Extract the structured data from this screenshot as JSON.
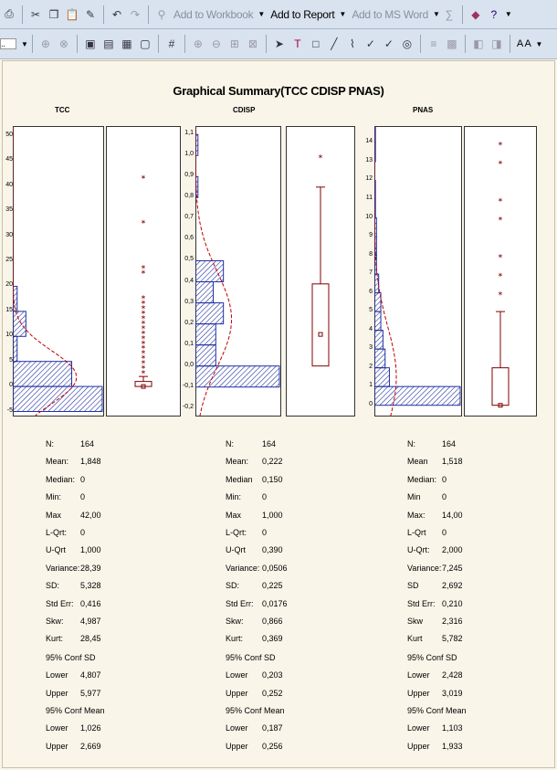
{
  "toolbar1": {
    "add_workbook": "Add to Workbook",
    "add_report": "Add to Report",
    "add_word": "Add to MS Word"
  },
  "toolbar2": {
    "zoom_box": "..",
    "font_label": "A A"
  },
  "title": "Graphical Summary(TCC CDISP PNAS)",
  "columns": [
    {
      "name": "TCC",
      "yticks": [
        "50",
        "45",
        "40",
        "35",
        "30",
        "25",
        "20",
        "15",
        "10",
        "5",
        "0",
        "-5"
      ],
      "stats": [
        [
          "N:",
          "164"
        ],
        [
          "Mean:",
          "1,848"
        ],
        [
          "Median:",
          "0"
        ],
        [
          "Min:",
          "0"
        ],
        [
          "Max",
          "42,00"
        ],
        [
          "L-Qrt:",
          "0"
        ],
        [
          "U-Qrt",
          "1,000"
        ],
        [
          "Variance:",
          "28,39"
        ],
        [
          "SD:",
          "5,328"
        ],
        [
          "Std Err:",
          "0,416"
        ],
        [
          "Skw:",
          "4,987"
        ],
        [
          "Kurt:",
          "28,45"
        ]
      ],
      "ci_sd": {
        "head": "95% Conf SD",
        "lower_label": "Lower",
        "lower": "4,807",
        "upper_label": "Upper",
        "upper": "5,977"
      },
      "ci_mean": {
        "head": "95% Conf Mean",
        "lower_label": "Lower",
        "lower": "1,026",
        "upper_label": "Upper",
        "upper": "2,669"
      }
    },
    {
      "name": "CDISP",
      "yticks": [
        "1,1",
        "1,0",
        "0,9",
        "0,8",
        "0,7",
        "0,6",
        "0,5",
        "0,4",
        "0,3",
        "0,2",
        "0,1",
        "0,0",
        "-0,1",
        "-0,2"
      ],
      "stats": [
        [
          "N:",
          "164"
        ],
        [
          "Mean:",
          "0,222"
        ],
        [
          "Median",
          "0,150"
        ],
        [
          "Min:",
          "0"
        ],
        [
          "Max",
          "1,000"
        ],
        [
          "L-Qrt:",
          "0"
        ],
        [
          "U-Qrt",
          "0,390"
        ],
        [
          "Variance:",
          "0,0506"
        ],
        [
          "SD:",
          "0,225"
        ],
        [
          "Std Err:",
          "0,0176"
        ],
        [
          "Skw:",
          "0,866"
        ],
        [
          "Kurt:",
          "0,369"
        ]
      ],
      "ci_sd": {
        "head": "95% Conf SD",
        "lower_label": "Lower",
        "lower": "0,203",
        "upper_label": "Upper",
        "upper": "0,252"
      },
      "ci_mean": {
        "head": "95% Conf Mean",
        "lower_label": "Lower",
        "lower": "0,187",
        "upper_label": "Upper",
        "upper": "0,256"
      }
    },
    {
      "name": "PNAS",
      "yticks": [
        "14",
        "13",
        "12",
        "11",
        "10",
        "9",
        "8",
        "7",
        "6",
        "5",
        "4",
        "3",
        "2",
        "1",
        "0"
      ],
      "stats": [
        [
          "N:",
          "164"
        ],
        [
          "Mean",
          "1,518"
        ],
        [
          "Median:",
          "0"
        ],
        [
          "Min",
          "0"
        ],
        [
          "Max:",
          "14,00"
        ],
        [
          "L-Qrt",
          "0"
        ],
        [
          "U-Qrt:",
          "2,000"
        ],
        [
          "Variance:",
          "7,245"
        ],
        [
          "SD",
          "2,692"
        ],
        [
          "Std Err:",
          "0,210"
        ],
        [
          "Skw",
          "2,316"
        ],
        [
          "Kurt",
          "5,782"
        ]
      ],
      "ci_sd": {
        "head": "95% Conf SD",
        "lower_label": "Lower",
        "lower": "2,428",
        "upper_label": "Upper",
        "upper": "3,019"
      },
      "ci_mean": {
        "head": "95% Conf Mean",
        "lower_label": "Lower",
        "lower": "1,103",
        "upper_label": "Upper",
        "upper": "1,933"
      }
    }
  ],
  "chart_data": [
    {
      "type": "bar",
      "variable": "TCC",
      "orientation": "horizontal-histogram",
      "bins": [
        -5,
        0,
        5,
        10,
        15,
        20
      ],
      "counts": [
        82,
        54,
        4,
        12,
        4,
        0
      ],
      "xlim": [
        -5,
        50
      ],
      "box": {
        "min": 0,
        "q1": 0,
        "median": 0,
        "q3": 1,
        "whisker_high": 2
      },
      "outliers": [
        3,
        4,
        5,
        6,
        7,
        8,
        9,
        10,
        11,
        12,
        13,
        14,
        15,
        16,
        17,
        18,
        23,
        24,
        33,
        42
      ]
    },
    {
      "type": "bar",
      "variable": "CDISP",
      "orientation": "horizontal-histogram",
      "bins": [
        -0.1,
        0.0,
        0.1,
        0.2,
        0.3,
        0.4,
        0.5,
        0.6,
        0.7,
        0.8,
        0.9,
        1.0
      ],
      "counts": [
        66,
        16,
        16,
        22,
        14,
        22,
        0,
        0,
        0,
        2,
        0,
        2
      ],
      "box": {
        "min": 0,
        "q1": 0,
        "median": 0.15,
        "q3": 0.39,
        "whisker_high": 0.85
      },
      "outliers": [
        1.0
      ]
    },
    {
      "type": "bar",
      "variable": "PNAS",
      "orientation": "horizontal-histogram",
      "bins": [
        0,
        1,
        2,
        3,
        4,
        5,
        6,
        7,
        8,
        9,
        10,
        11,
        12,
        13,
        14
      ],
      "counts": [
        80,
        14,
        10,
        8,
        6,
        6,
        4,
        2,
        2,
        2,
        1,
        1,
        0,
        1,
        1
      ],
      "box": {
        "min": 0,
        "q1": 0,
        "median": 0,
        "q3": 2,
        "whisker_high": 5
      },
      "outliers": [
        6,
        7,
        8,
        10,
        11,
        13,
        14
      ]
    }
  ]
}
